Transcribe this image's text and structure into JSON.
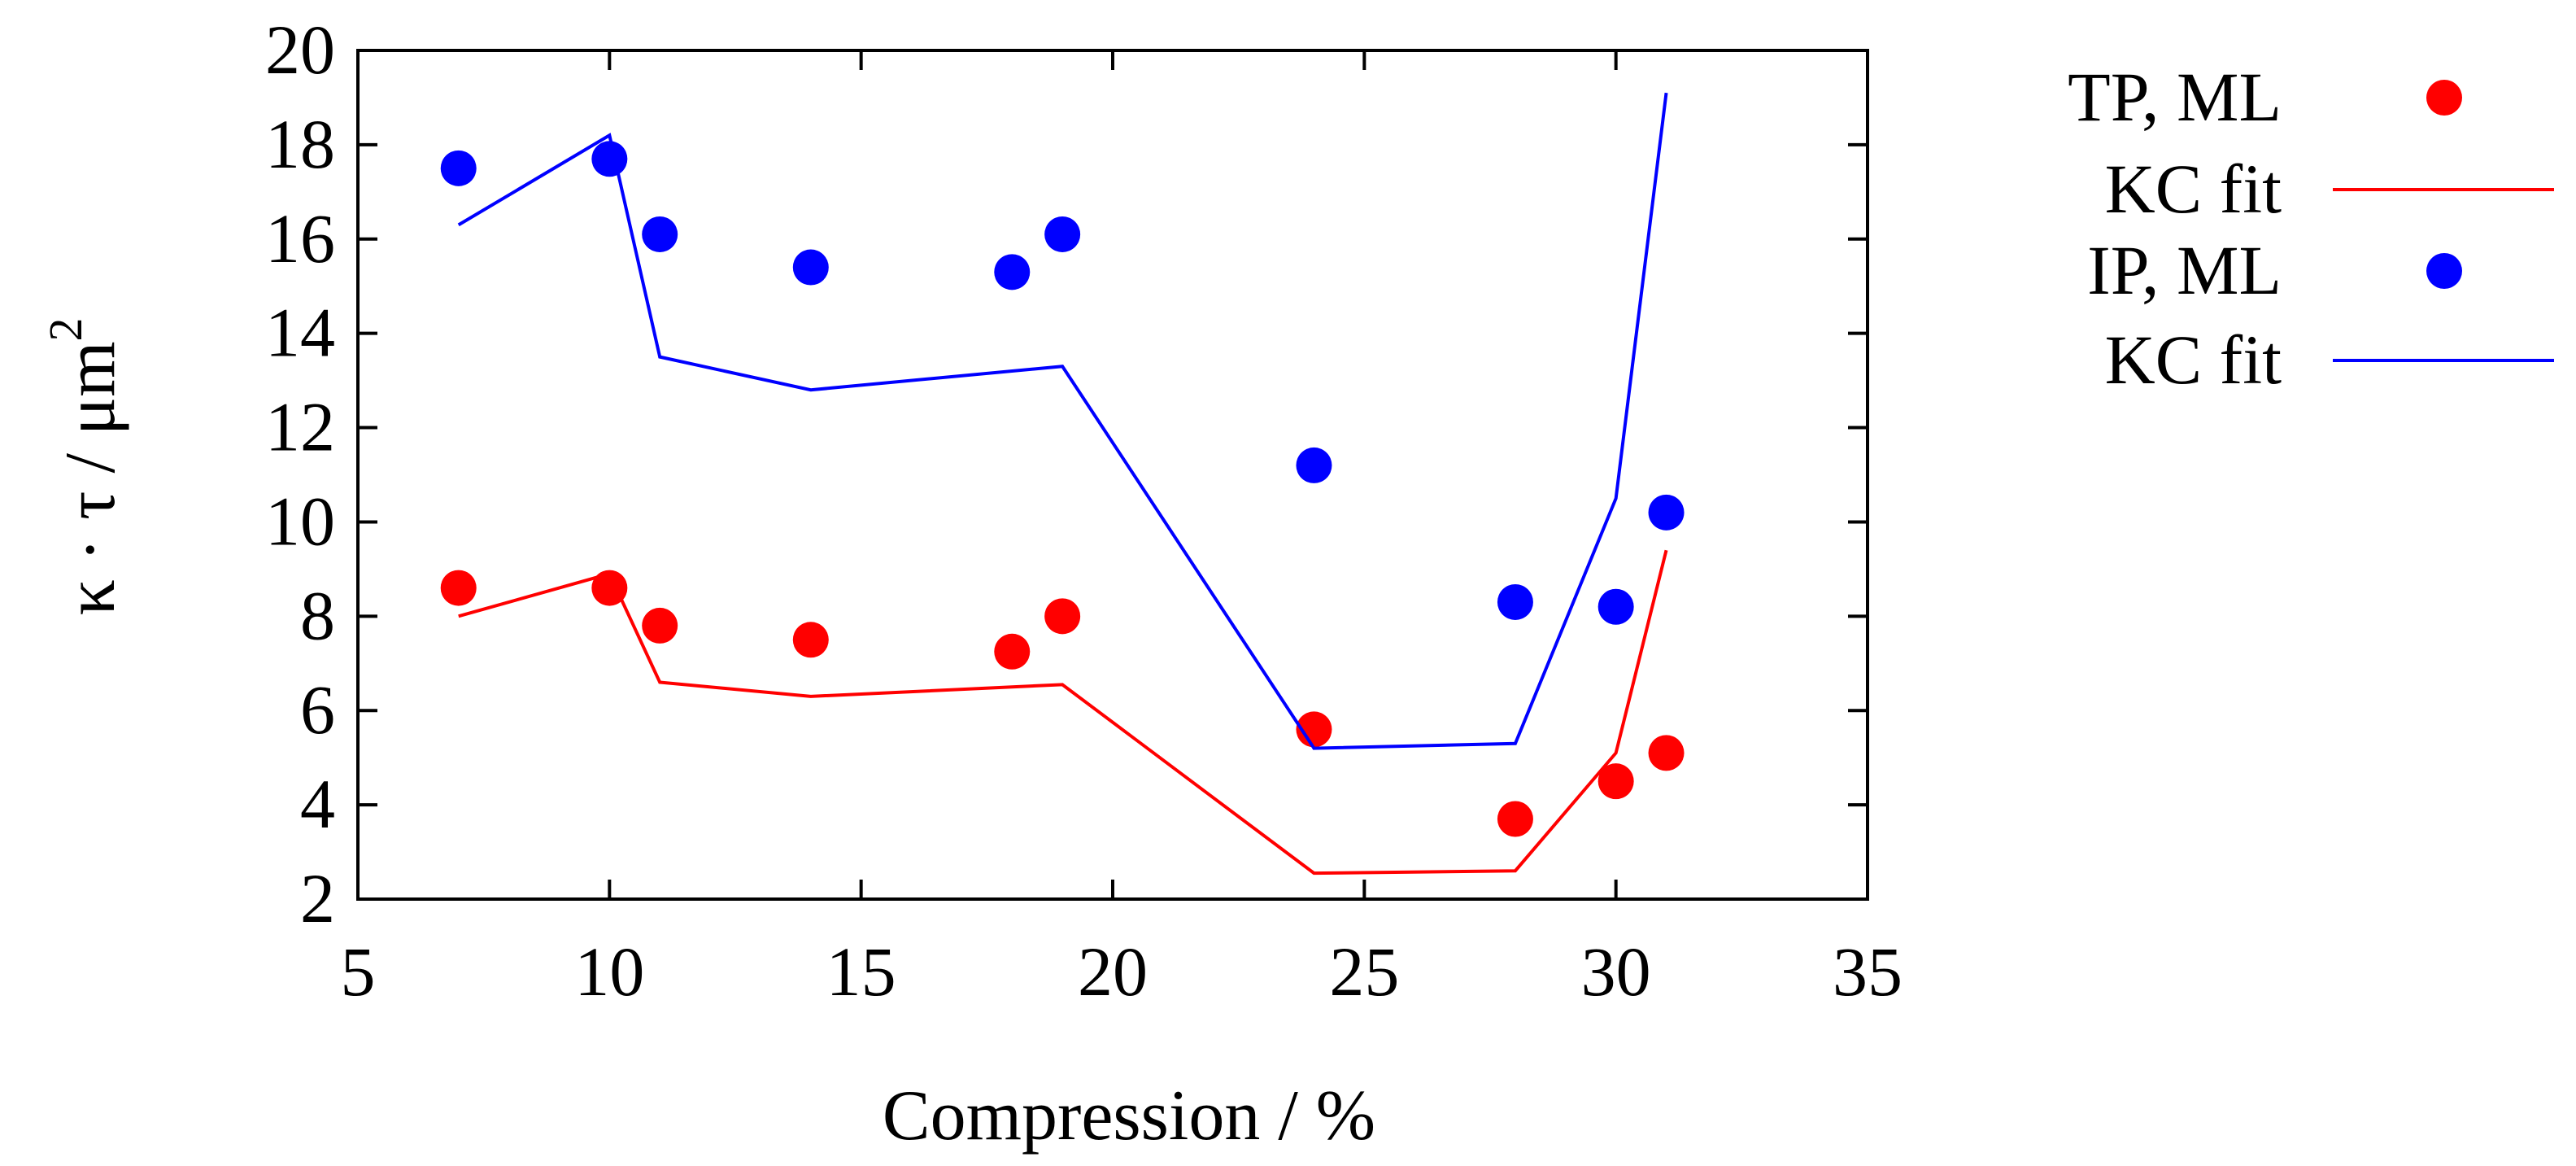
{
  "chart_data": {
    "type": "scatter",
    "title": "",
    "xlabel": "Compression  / %",
    "ylabel": {
      "main": "κ · τ / μm",
      "superscript": "2"
    },
    "xlim": [
      5,
      35
    ],
    "ylim": [
      2,
      20
    ],
    "xticks": [
      5,
      10,
      15,
      20,
      25,
      30,
      35
    ],
    "yticks": [
      2,
      4,
      6,
      8,
      10,
      12,
      14,
      16,
      18,
      20
    ],
    "grid": false,
    "legend_position": "right-outside",
    "series": [
      {
        "name": "TP, ML",
        "kind": "points",
        "color": "#ff0000",
        "x": [
          7,
          10,
          11,
          14,
          18,
          19,
          24,
          28,
          30,
          31
        ],
        "y": [
          8.6,
          8.6,
          7.8,
          7.5,
          7.25,
          8.0,
          5.6,
          3.7,
          4.5,
          5.1
        ]
      },
      {
        "name": "KC fit",
        "kind": "line",
        "color": "#ff0000",
        "x": [
          7,
          10,
          11,
          14,
          19,
          24,
          28,
          30,
          31
        ],
        "y": [
          8.0,
          8.9,
          6.6,
          6.3,
          6.55,
          2.55,
          2.6,
          5.1,
          9.4
        ]
      },
      {
        "name": "IP, ML",
        "kind": "points",
        "color": "#0000ff",
        "x": [
          7,
          10,
          11,
          14,
          18,
          19,
          24,
          28,
          30,
          31
        ],
        "y": [
          17.5,
          17.7,
          16.1,
          15.4,
          15.3,
          16.1,
          11.2,
          8.3,
          8.2,
          10.2
        ]
      },
      {
        "name": "KC fit",
        "kind": "line",
        "color": "#0000ff",
        "x": [
          7,
          10,
          11,
          14,
          19,
          24,
          28,
          30,
          31
        ],
        "y": [
          16.3,
          18.2,
          13.5,
          12.8,
          13.3,
          5.2,
          5.3,
          10.5,
          19.1
        ]
      }
    ]
  }
}
